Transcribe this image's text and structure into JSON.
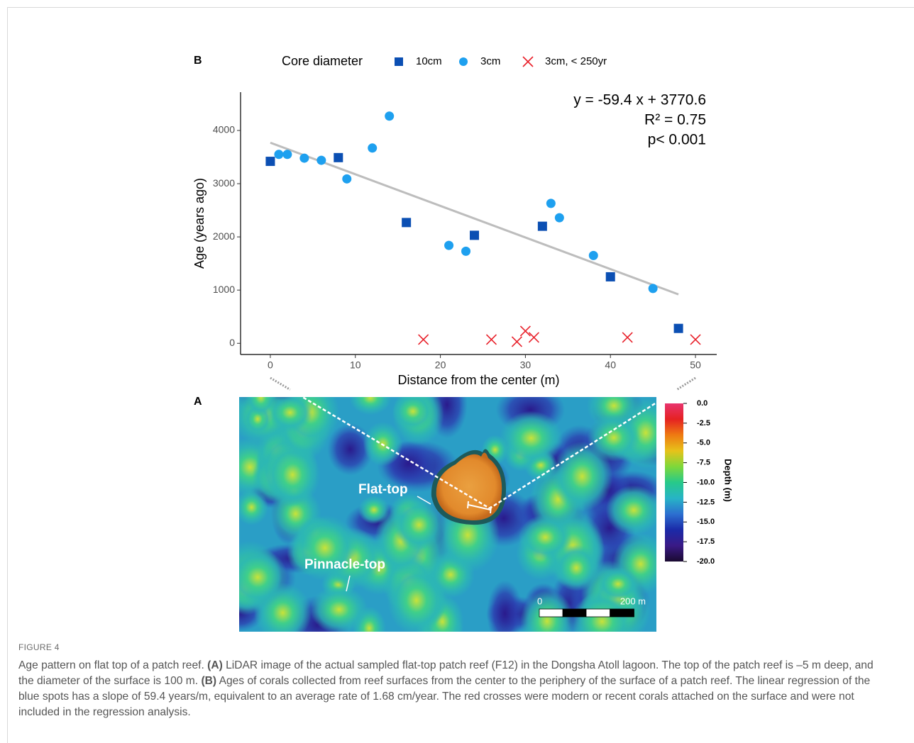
{
  "panel_b": "B",
  "panel_a": "A",
  "chart_data": {
    "type": "scatter",
    "legend_title": "Core diameter",
    "xlabel": "Distance from the center (m)",
    "ylabel": "Age (years ago)",
    "xlim": [
      -3.5,
      52.5
    ],
    "ylim": [
      -210,
      4720
    ],
    "xticks": [
      0,
      10,
      20,
      30,
      40,
      50
    ],
    "yticks": [
      0,
      1000,
      2000,
      3000,
      4000
    ],
    "series": [
      {
        "name": "10cm",
        "color": "#0b4fb3",
        "marker": "square",
        "x": [
          0,
          8,
          16,
          24,
          32,
          40,
          48
        ],
        "values": [
          3420,
          3490,
          2270,
          2030,
          2200,
          1250,
          280
        ]
      },
      {
        "name": "3cm",
        "color": "#1ea0ef",
        "marker": "circle",
        "x": [
          1,
          2,
          4,
          6,
          9,
          12,
          14,
          21,
          23,
          33,
          34,
          38,
          45
        ],
        "values": [
          3550,
          3550,
          3480,
          3440,
          3090,
          3670,
          4270,
          1840,
          1730,
          2630,
          2360,
          1650,
          1030
        ]
      },
      {
        "name": "3cm, < 250yr",
        "color": "#e8202a",
        "marker": "x",
        "x": [
          18,
          26,
          29,
          30,
          31,
          42,
          50
        ],
        "values": [
          70,
          70,
          30,
          230,
          110,
          110,
          70
        ]
      }
    ],
    "fit": {
      "slope": -59.4,
      "intercept": 3770.6,
      "color": "#bdbdbd"
    },
    "annotations": [
      "y = -59.4 x + 3770.6",
      "R² = 0.75",
      "p< 0.001"
    ]
  },
  "map": {
    "labels": [
      "Flat-top",
      "Pinnacle-top"
    ],
    "scale_labels": [
      "0",
      "200 m"
    ],
    "colorbar": {
      "title": "Depth (m)",
      "lim": [
        -20,
        0
      ],
      "ticks": [
        {
          "value": 0,
          "label": "0.0"
        },
        {
          "value": -2.5,
          "label": "-2.5"
        },
        {
          "value": -5,
          "label": "-5.0"
        },
        {
          "value": -7.5,
          "label": "-7.5"
        },
        {
          "value": -10,
          "label": "-10.0"
        },
        {
          "value": -12.5,
          "label": "-12.5"
        },
        {
          "value": -15,
          "label": "-15.0"
        },
        {
          "value": -17.5,
          "label": "-17.5"
        },
        {
          "value": -20,
          "label": "-20.0"
        }
      ]
    }
  },
  "caption": {
    "label": "FIGURE 4",
    "parts": [
      "Age pattern on flat top of a patch reef. ",
      "(A)",
      " LiDAR image of the actual sampled flat-top patch reef (F12) in the Dongsha Atoll lagoon. The top of the patch reef is –5 m deep, and the diameter of the surface is 100 m. ",
      "(B)",
      " Ages of corals collected from reef surfaces from the center to the periphery of the surface of a patch reef. The linear regression of the blue spots has a slope of 59.4 years/m, equivalent to an average rate of 1.68 cm/year. The red crosses were modern or recent corals attached on the surface and were not included in the regression analysis."
    ]
  }
}
